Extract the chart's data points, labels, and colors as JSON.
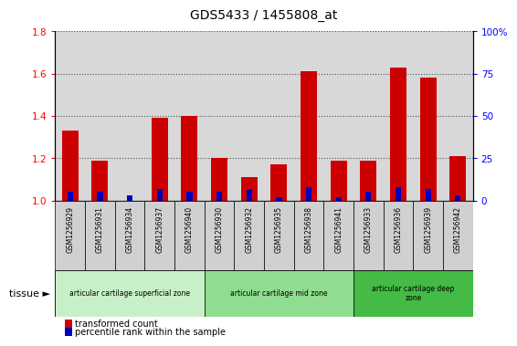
{
  "title": "GDS5433 / 1455808_at",
  "samples": [
    "GSM1256929",
    "GSM1256931",
    "GSM1256934",
    "GSM1256937",
    "GSM1256940",
    "GSM1256930",
    "GSM1256932",
    "GSM1256935",
    "GSM1256938",
    "GSM1256941",
    "GSM1256933",
    "GSM1256936",
    "GSM1256939",
    "GSM1256942"
  ],
  "transformed_count": [
    1.33,
    1.19,
    1.0,
    1.39,
    1.4,
    1.2,
    1.11,
    1.17,
    1.61,
    1.19,
    1.19,
    1.63,
    1.58,
    1.21
  ],
  "percentile_rank": [
    5,
    5,
    3,
    7,
    5,
    5,
    7,
    2,
    8,
    2,
    5,
    8,
    7,
    3
  ],
  "ylim_left": [
    1.0,
    1.8
  ],
  "ylim_right": [
    0,
    100
  ],
  "yticks_left": [
    1.0,
    1.2,
    1.4,
    1.6,
    1.8
  ],
  "yticks_right": [
    0,
    25,
    50,
    75,
    100
  ],
  "bar_color_red": "#cc0000",
  "bar_color_blue": "#0000bb",
  "bg_color": "#d8d8d8",
  "zones": [
    {
      "label": "articular cartilage superficial zone",
      "start": 0,
      "end": 5,
      "color": "#c8f0c8"
    },
    {
      "label": "articular cartilage mid zone",
      "start": 5,
      "end": 10,
      "color": "#90dd90"
    },
    {
      "label": "articular cartilage deep\nzone",
      "start": 10,
      "end": 14,
      "color": "#44bb44"
    }
  ],
  "tissue_label": "tissue",
  "legend_red": "transformed count",
  "legend_blue": "percentile rank within the sample"
}
